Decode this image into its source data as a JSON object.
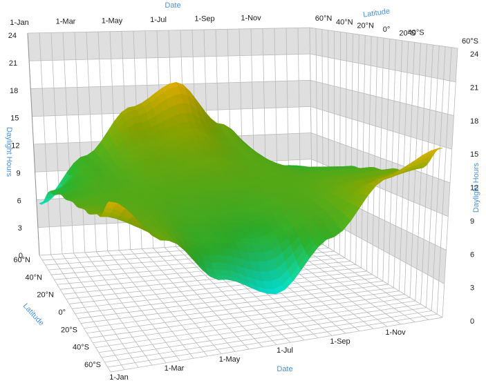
{
  "chart_data": {
    "type": "surface3d",
    "title": "",
    "axes": {
      "date": {
        "label": "Date",
        "ticks": [
          "1-Jan",
          "1-Mar",
          "1-May",
          "1-Jul",
          "1-Sep",
          "1-Nov"
        ],
        "range": [
          "1-Jan",
          "31-Dec"
        ]
      },
      "latitude": {
        "label": "Latitude",
        "ticks": [
          "60°N",
          "40°N",
          "20°N",
          "0°",
          "20°S",
          "40°S",
          "60°S"
        ],
        "range": [
          60,
          -60
        ]
      },
      "daylight": {
        "label": "Daylight Hours",
        "ticks": [
          "0",
          "3",
          "6",
          "9",
          "12",
          "15",
          "18",
          "21",
          "24"
        ],
        "range": [
          0,
          24
        ]
      }
    },
    "surface": {
      "dates": [
        "1-Jan",
        "1-Mar",
        "1-May",
        "1-Jul",
        "1-Sep",
        "1-Nov",
        "31-Dec"
      ],
      "latitudes": [
        60,
        40,
        20,
        0,
        -20,
        -40,
        -60
      ],
      "daylight_hours": [
        [
          5.9,
          11.0,
          16.2,
          18.7,
          13.6,
          8.2,
          5.9
        ],
        [
          9.3,
          11.4,
          13.8,
          14.9,
          12.6,
          10.0,
          9.3
        ],
        [
          10.9,
          11.7,
          12.8,
          13.2,
          12.3,
          11.2,
          10.9
        ],
        [
          12.1,
          12.1,
          12.1,
          12.1,
          12.1,
          12.1,
          12.1
        ],
        [
          13.3,
          12.5,
          11.4,
          11.0,
          11.9,
          13.0,
          13.3
        ],
        [
          14.9,
          12.8,
          10.4,
          9.3,
          11.6,
          14.2,
          14.9
        ],
        [
          18.3,
          13.2,
          8.0,
          5.5,
          10.6,
          16.0,
          18.3
        ]
      ]
    },
    "colors": {
      "low": "#00ffff",
      "mid": "#30c030",
      "high": "#ffc000",
      "axis_title": "#4a90d9",
      "wall_band": "#d9d9d9",
      "grid": "#b9b9b9"
    }
  }
}
